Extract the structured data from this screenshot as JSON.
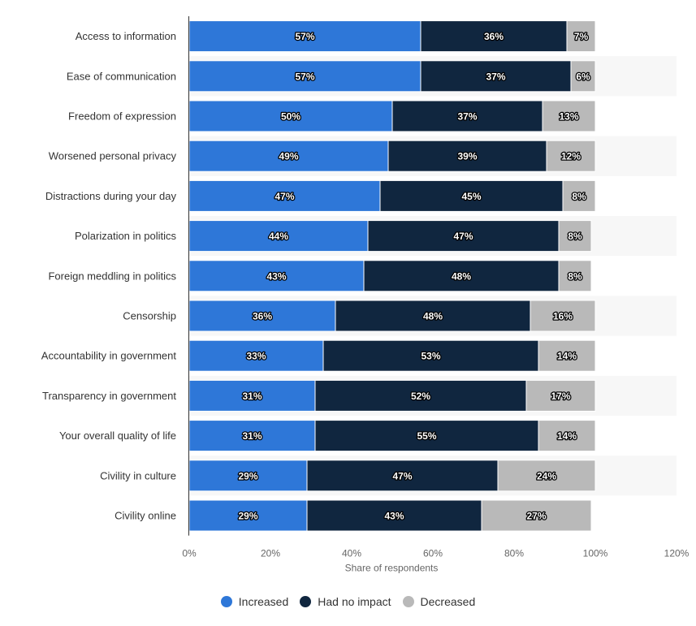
{
  "chart_data": {
    "type": "bar",
    "orientation": "horizontal",
    "stacked": true,
    "categories": [
      "Access to information",
      "Ease of communication",
      "Freedom of expression",
      "Worsened personal privacy",
      "Distractions during your day",
      "Polarization in politics",
      "Foreign meddling in politics",
      "Censorship",
      "Accountability in government",
      "Transparency in government",
      "Your overall quality of life",
      "Civility in culture",
      "Civility online"
    ],
    "series": [
      {
        "name": "Increased",
        "color": "#2e77d8",
        "values": [
          57,
          57,
          50,
          49,
          47,
          44,
          43,
          36,
          33,
          31,
          31,
          29,
          29
        ]
      },
      {
        "name": "Had no impact",
        "color": "#10263f",
        "values": [
          36,
          37,
          37,
          39,
          45,
          47,
          48,
          48,
          53,
          52,
          55,
          47,
          43
        ]
      },
      {
        "name": "Decreased",
        "color": "#b9b9b9",
        "values": [
          7,
          6,
          13,
          12,
          8,
          8,
          8,
          16,
          14,
          17,
          14,
          24,
          27
        ]
      }
    ],
    "value_suffix": "%",
    "xlabel": "Share of respondents",
    "ylabel": "",
    "xlim": [
      0,
      120
    ],
    "xticks": [
      0,
      20,
      40,
      60,
      80,
      100,
      120
    ],
    "xtick_labels": [
      "0%",
      "20%",
      "40%",
      "60%",
      "80%",
      "100%",
      "120%"
    ],
    "grid": false,
    "legend_position": "bottom"
  }
}
